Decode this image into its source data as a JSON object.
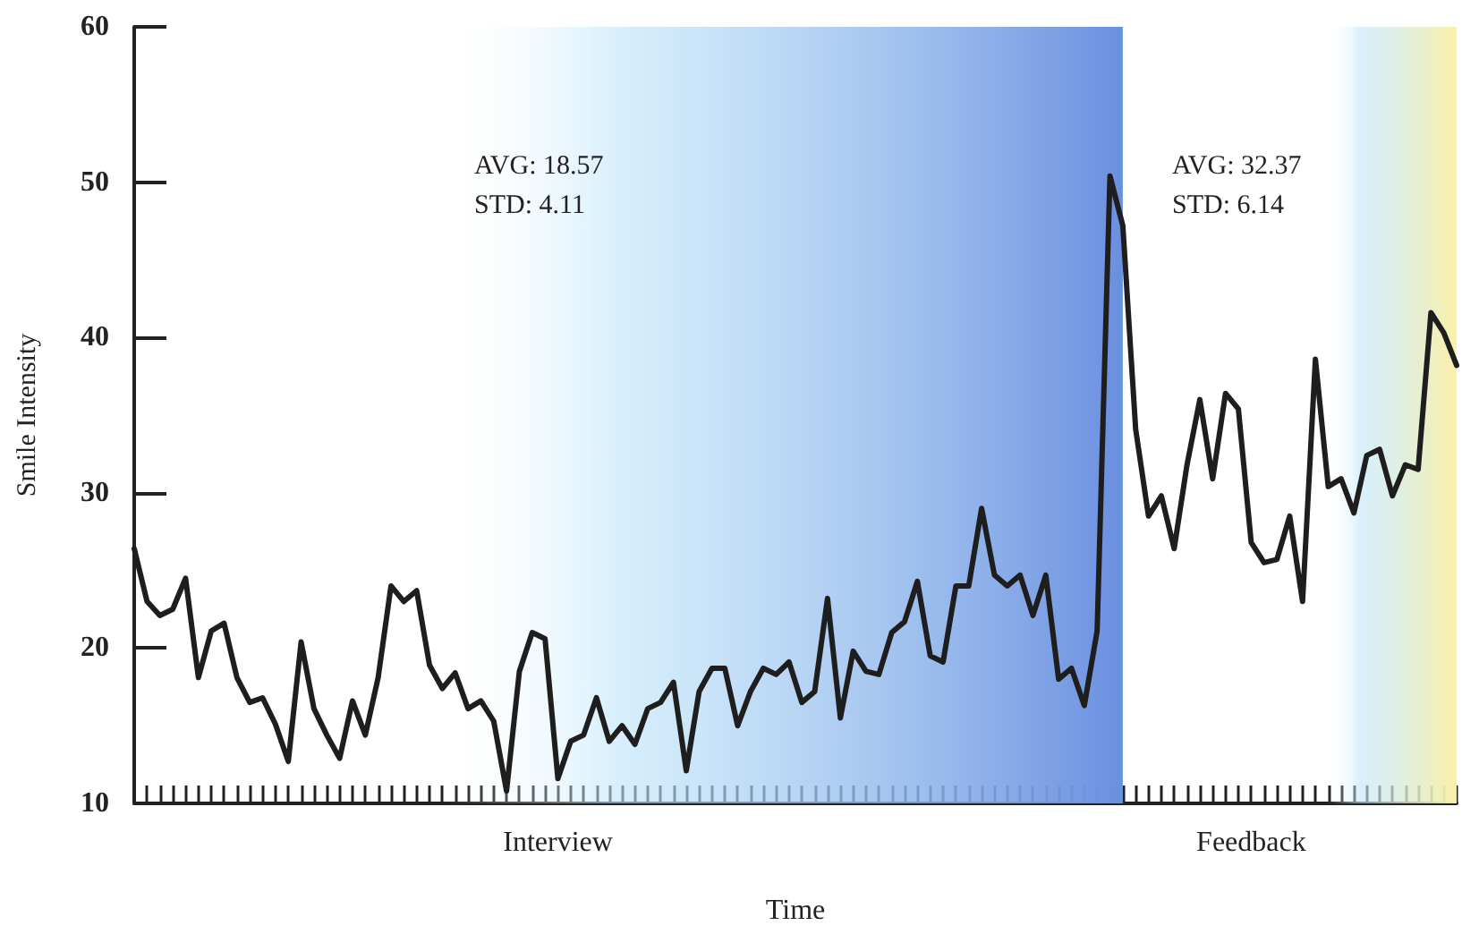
{
  "chart_data": {
    "type": "line",
    "xlabel": "Time",
    "ylabel": "Smile Intensity",
    "annotations": [
      "AVG: 18.57\nSTD: 4.11",
      "AVG: 32.37\nSTD: 6.14"
    ],
    "categories": [
      null,
      null,
      null,
      null,
      null,
      null,
      null,
      null,
      null,
      null,
      null,
      null,
      null,
      null,
      null,
      null,
      null,
      null,
      null,
      null,
      null,
      null,
      null,
      null,
      null,
      null,
      null,
      null,
      null,
      null,
      null,
      null,
      null,
      "Interview",
      null,
      null,
      null,
      null,
      null,
      null,
      null,
      null,
      null,
      null,
      null,
      null,
      null,
      null,
      null,
      null,
      null,
      null,
      null,
      null,
      null,
      null,
      null,
      null,
      null,
      null,
      null,
      null,
      null,
      null,
      null,
      null,
      null,
      null,
      null,
      null,
      null,
      null,
      null,
      null,
      null,
      null,
      null,
      null,
      null,
      null,
      null,
      null,
      null,
      null,
      null,
      null,
      null,
      "Feedback",
      null,
      null,
      null,
      null,
      null,
      null,
      null,
      null,
      null,
      null,
      null,
      null,
      null,
      null,
      null,
      null
    ],
    "series": [
      {
        "color": "#1e1e1e",
        "values": [
          26.4,
          23.0,
          22.1,
          22.5,
          24.5,
          18.1,
          21.1,
          21.6,
          18.1,
          16.5,
          16.8,
          15.1,
          12.7,
          20.4,
          16.1,
          14.4,
          12.9,
          16.6,
          14.4,
          18.1,
          24.0,
          23.0,
          23.7,
          18.9,
          17.4,
          18.4,
          16.1,
          16.6,
          15.3,
          10.8,
          18.5,
          21.0,
          20.6,
          11.6,
          14.0,
          14.4,
          16.8,
          14.0,
          15.0,
          13.8,
          16.1,
          16.5,
          17.8,
          12.1,
          17.2,
          18.7,
          18.7,
          15.0,
          17.2,
          18.7,
          18.3,
          19.1,
          16.5,
          17.2,
          23.2,
          15.5,
          19.8,
          18.5,
          18.3,
          21.0,
          21.7,
          24.3,
          19.5,
          19.1,
          24.0,
          24.0,
          29.0,
          24.7,
          24.0,
          24.7,
          22.1,
          24.7,
          18.0,
          18.7,
          16.3,
          21.1,
          50.4,
          47.2,
          34.1,
          28.5,
          29.8,
          26.4,
          31.8,
          36.0,
          30.9,
          36.4,
          35.4,
          26.8,
          25.5,
          25.7,
          28.5,
          23.0,
          38.6,
          30.4,
          30.9,
          28.7,
          32.4,
          32.8,
          29.8,
          31.8,
          31.5,
          41.6,
          40.3,
          38.2
        ]
      }
    ],
    "ylim": [
      10,
      60
    ],
    "yticks": [
      10,
      20,
      30,
      40,
      50,
      60
    ],
    "grid": false,
    "marker": "none",
    "line_style": "solid"
  }
}
